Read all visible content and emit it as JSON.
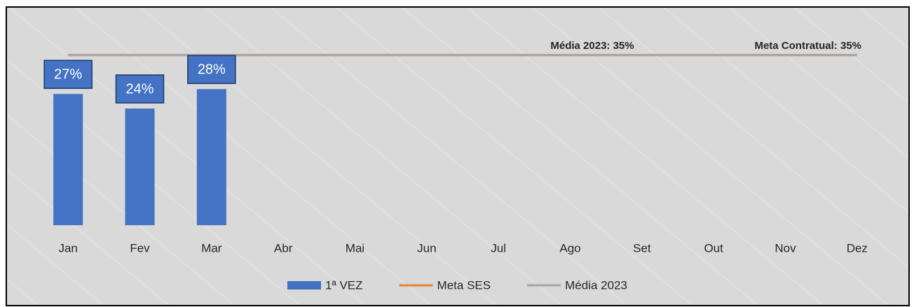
{
  "chart_data": {
    "type": "bar",
    "categories": [
      "Jan",
      "Fev",
      "Mar",
      "Abr",
      "Mai",
      "Jun",
      "Jul",
      "Ago",
      "Set",
      "Out",
      "Nov",
      "Dez"
    ],
    "series": [
      {
        "name": "1ª VEZ",
        "type": "bar",
        "color": "#4472c4",
        "values": [
          27,
          24,
          28,
          null,
          null,
          null,
          null,
          null,
          null,
          null,
          null,
          null
        ],
        "value_labels": [
          "27%",
          "24%",
          "28%",
          null,
          null,
          null,
          null,
          null,
          null,
          null,
          null,
          null
        ]
      },
      {
        "name": "Meta SES",
        "type": "line",
        "color": "#ed7d31",
        "values": [
          35,
          35,
          35,
          35,
          35,
          35,
          35,
          35,
          35,
          35,
          35,
          35
        ]
      },
      {
        "name": "Média 2023",
        "type": "line",
        "color": "#a5a5a5",
        "values": [
          35,
          35,
          35,
          35,
          35,
          35,
          35,
          35,
          35,
          35,
          35,
          35
        ]
      }
    ],
    "annotations": [
      "Média 2023: 35%",
      "Meta Contratual: 35%"
    ],
    "ylim": [
      0,
      40
    ],
    "legend": "bottom"
  }
}
